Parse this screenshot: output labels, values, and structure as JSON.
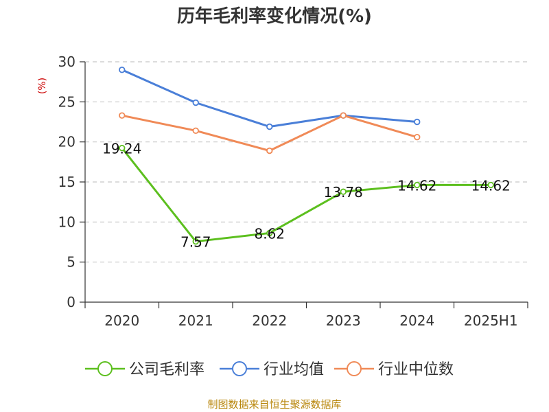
{
  "chart_data": {
    "type": "line",
    "title": "历年毛利率变化情况(%)",
    "ylabel": "(%)",
    "categories": [
      "2020",
      "2021",
      "2022",
      "2023",
      "2024",
      "2025H1"
    ],
    "ylim": [
      0,
      30
    ],
    "yticks": [
      "0",
      "5",
      "10",
      "15",
      "20",
      "25",
      "30"
    ],
    "grid": true,
    "legend_position": "bottom",
    "series": [
      {
        "name": "公司毛利率",
        "color": "#5cbf1e",
        "values": [
          19.24,
          7.57,
          8.62,
          13.78,
          14.62,
          14.62
        ],
        "labels": [
          "19.24",
          "7.57",
          "8.62",
          "13.78",
          "14.62",
          "14.62"
        ]
      },
      {
        "name": "行业均值",
        "color": "#4a7fd8",
        "values": [
          29.0,
          24.9,
          21.9,
          23.3,
          22.5,
          null
        ]
      },
      {
        "name": "行业中位数",
        "color": "#f08a57",
        "values": [
          23.3,
          21.4,
          18.9,
          23.3,
          20.6,
          null
        ]
      }
    ],
    "source": "制图数据来自恒生聚源数据库"
  }
}
